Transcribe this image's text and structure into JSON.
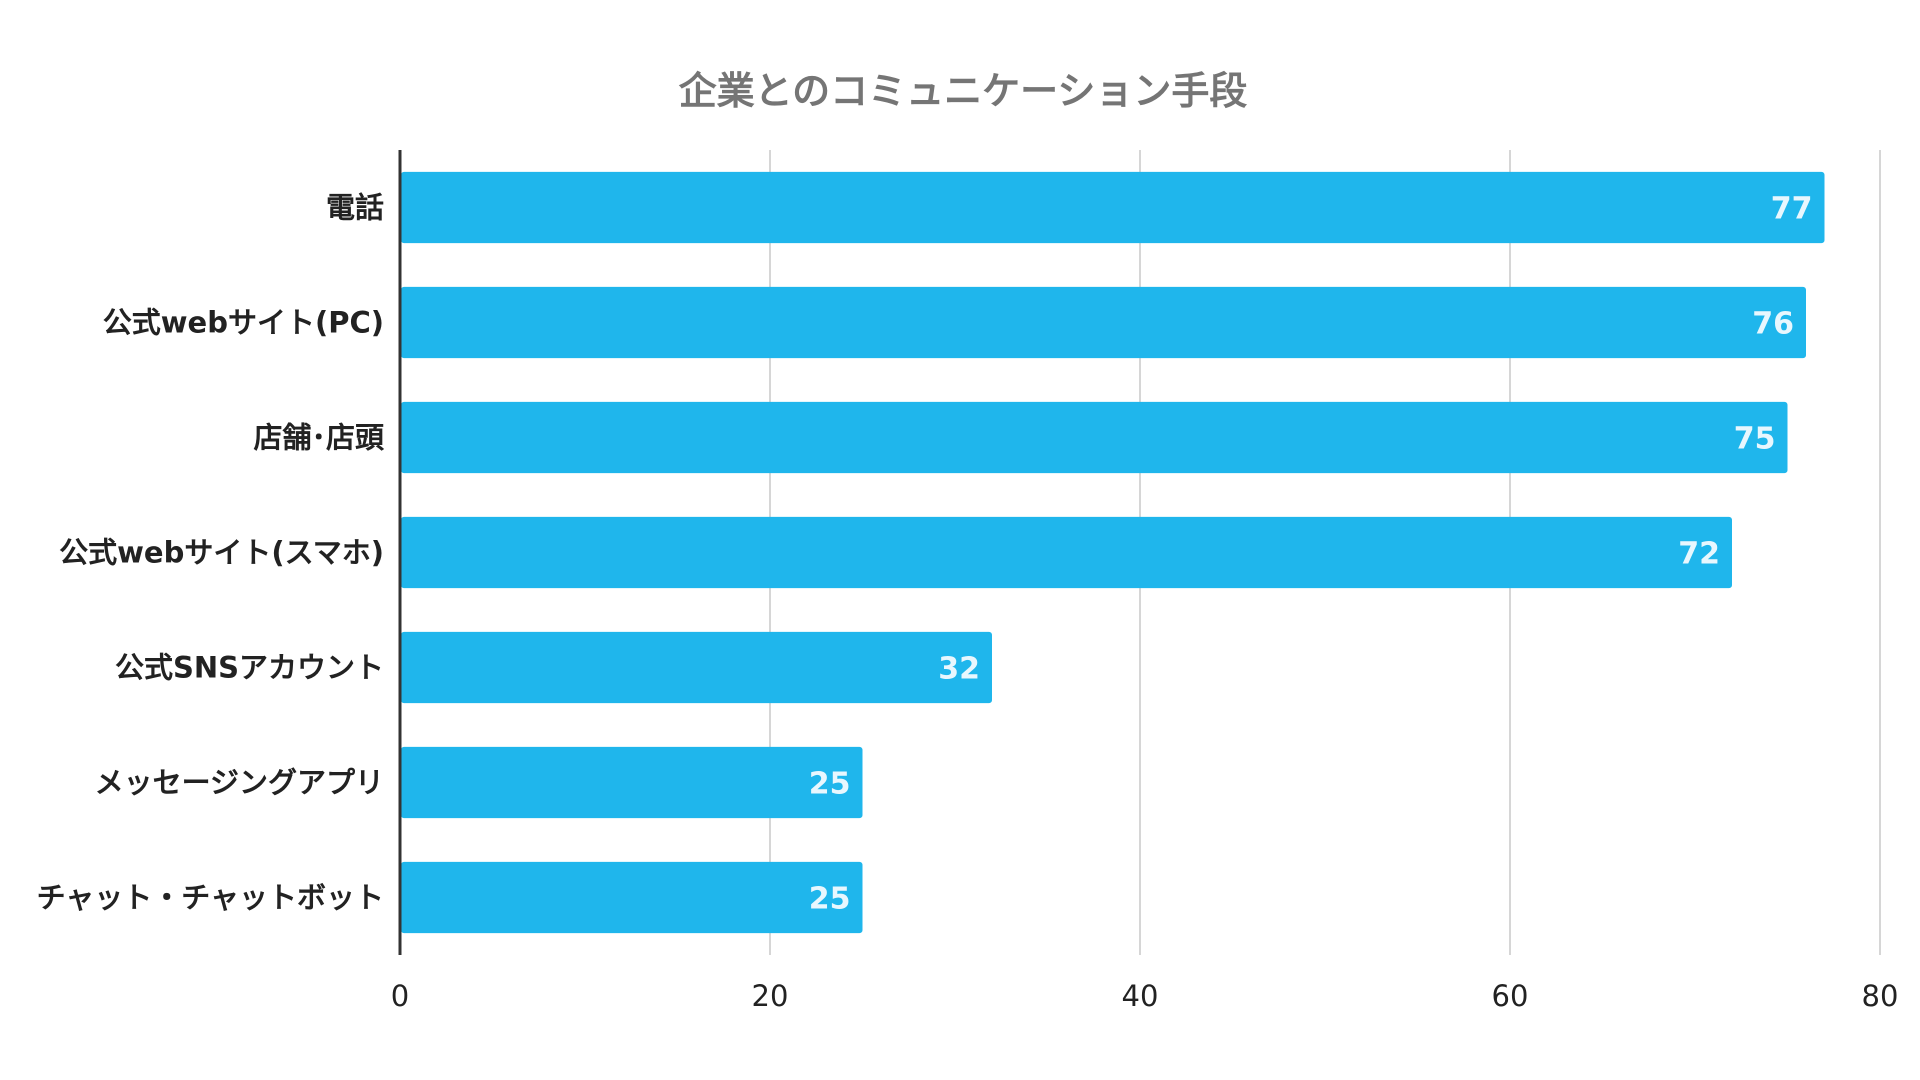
{
  "chart_data": {
    "type": "bar",
    "orientation": "horizontal",
    "title": "企業とのコミュニケーション手段",
    "xlabel": "",
    "ylabel": "",
    "categories": [
      "電話",
      "公式webサイト(PC)",
      "店舗･店頭",
      "公式webサイト(スマホ)",
      "公式SNSアカウント",
      "メッセージングアプリ",
      "チャット・チャットボット"
    ],
    "values": [
      77,
      76,
      75,
      72,
      32,
      25,
      25
    ],
    "xlim": [
      0,
      80
    ],
    "x_ticks": [
      0,
      20,
      40,
      60,
      80
    ],
    "grid": true,
    "legend": "none",
    "data_labels": "inside-end",
    "colors": {
      "bar": "#1fb6ec",
      "value_label": "#e8f7fe",
      "grid": "#d6d6d6",
      "axis": "#333333",
      "title": "#757575"
    }
  }
}
